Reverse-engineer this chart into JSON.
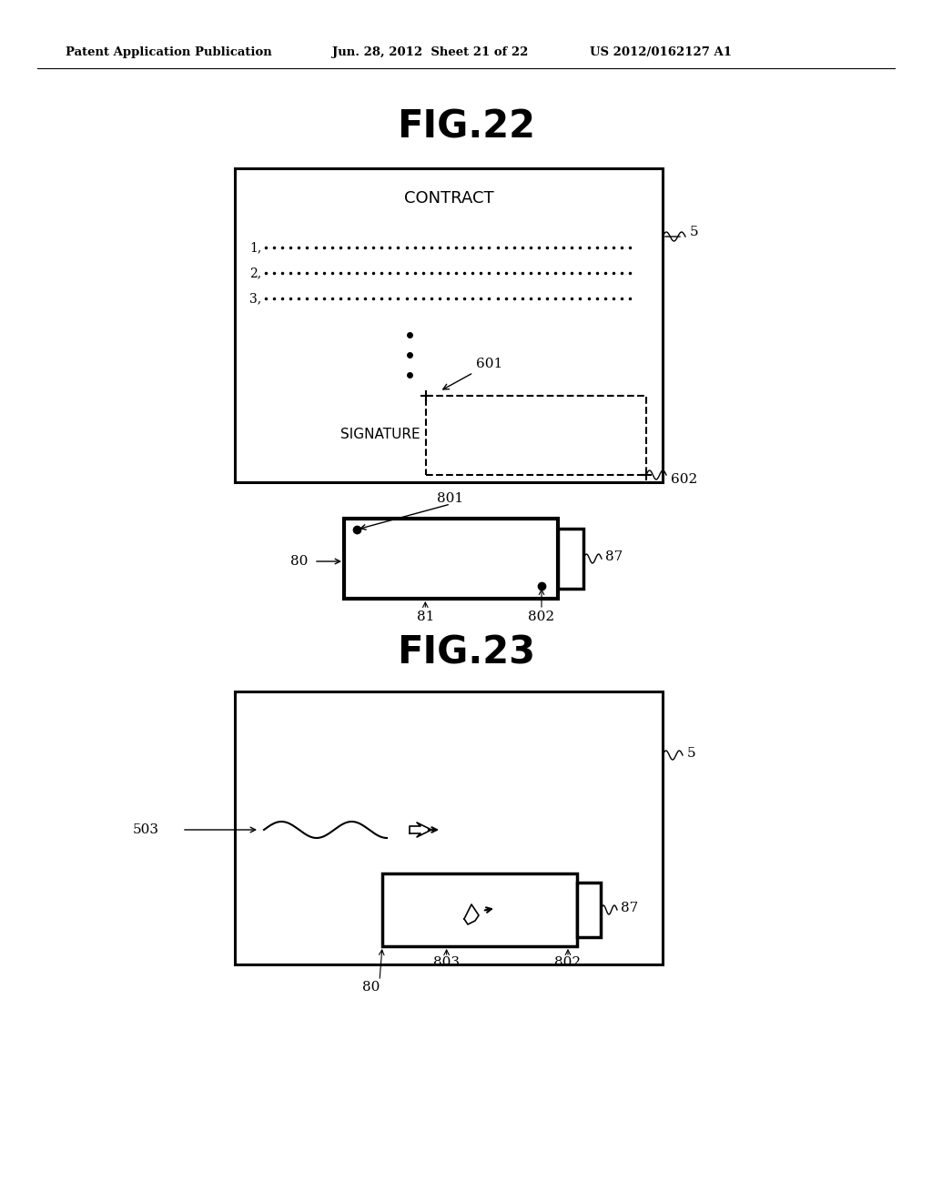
{
  "bg_color": "#ffffff",
  "header_left": "Patent Application Publication",
  "header_mid": "Jun. 28, 2012  Sheet 21 of 22",
  "header_right": "US 2012/0162127 A1",
  "fig22_title": "FIG.22",
  "fig23_title": "FIG.23",
  "header_fontsize": 9.5,
  "fig_title_fontsize": 30,
  "label_fontsize": 11,
  "contract_fontsize": 12,
  "sig_fontsize": 11
}
